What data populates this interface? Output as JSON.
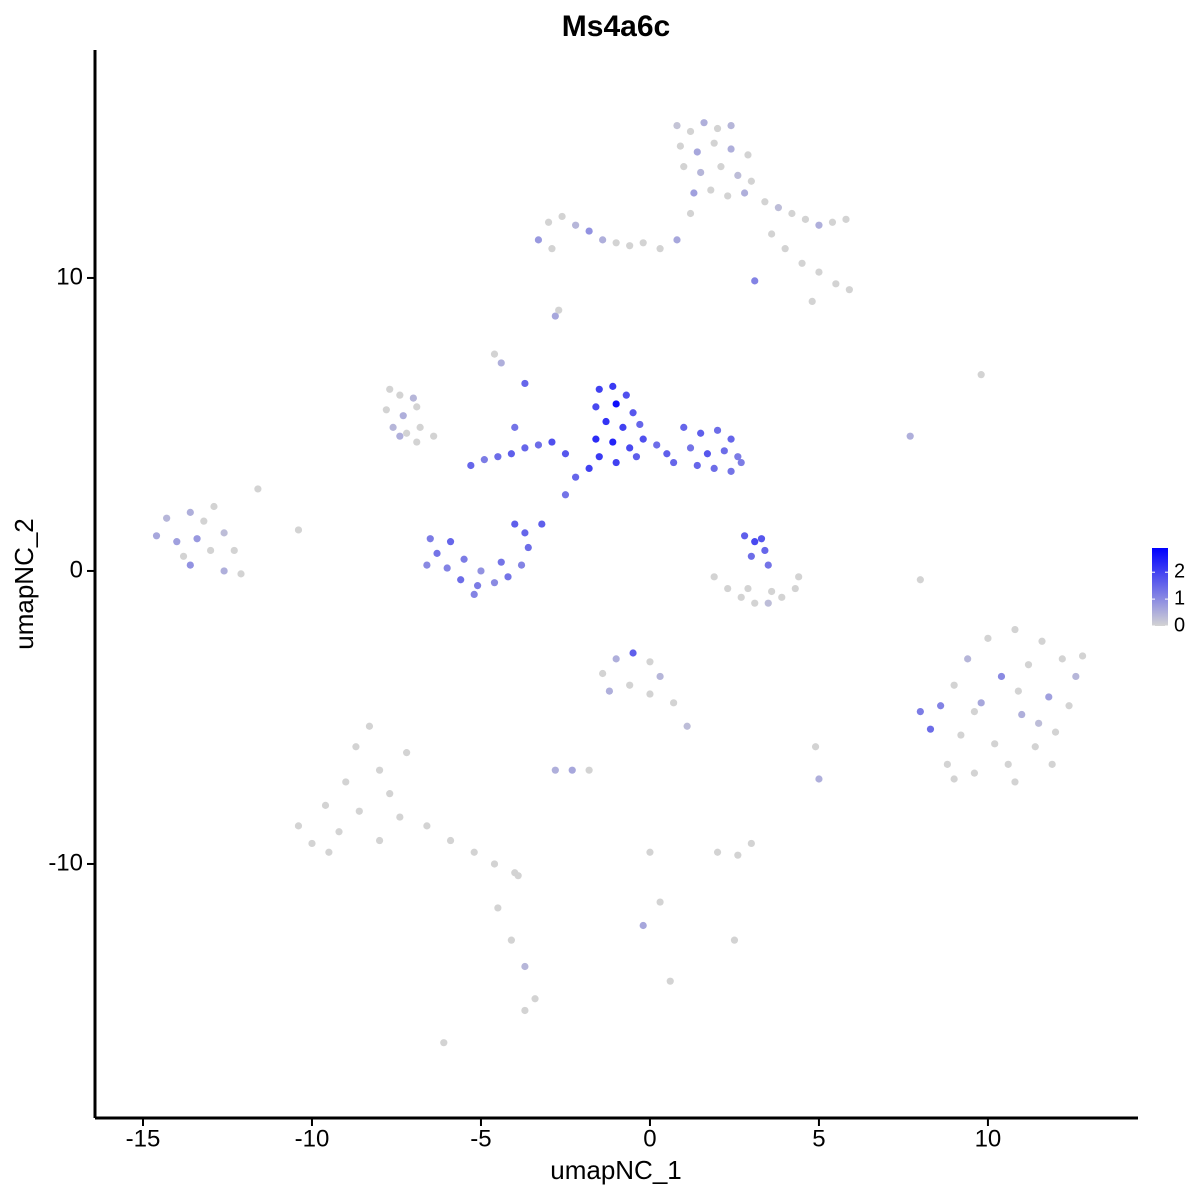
{
  "chart_data": {
    "type": "scatter",
    "title": "Ms4a6c",
    "xlabel": "umapNC_1",
    "ylabel": "umapNC_2",
    "xlim": [
      -16.42,
      14.44
    ],
    "ylim": [
      -18.67,
      17.78
    ],
    "xticks": [
      -15,
      -10,
      -5,
      0,
      5,
      10
    ],
    "yticks": [
      -10,
      0,
      10
    ],
    "colorlim": [
      0,
      2.9
    ],
    "colorticks": [
      0,
      1,
      2
    ],
    "colors": [
      "#d3d3d3",
      "#0000ff"
    ],
    "x": [
      0.8,
      1.2,
      1.6,
      2.0,
      2.4,
      0.9,
      1.4,
      1.9,
      2.4,
      2.9,
      1.0,
      1.5,
      2.1,
      2.6,
      3.0,
      1.3,
      1.8,
      2.3,
      2.8,
      1.2,
      3.4,
      3.8,
      4.2,
      4.6,
      5.0,
      5.4,
      5.8,
      3.6,
      4.0,
      4.5,
      5.0,
      5.5,
      5.9,
      4.8,
      3.1,
      -3.3,
      -3.0,
      -2.6,
      -2.2,
      -1.8,
      -1.4,
      -1.0,
      -0.6,
      -0.2,
      0.3,
      0.8,
      -2.9,
      -2.8,
      -2.7,
      -4.6,
      -4.4,
      -7.7,
      -7.4,
      -7.0,
      -7.8,
      -7.3,
      -6.9,
      -7.6,
      -7.2,
      -6.8,
      -6.4,
      -6.9,
      -7.4,
      -14.6,
      -14.3,
      -14.0,
      -13.6,
      -13.2,
      -12.9,
      -13.8,
      -13.4,
      -13.0,
      -12.6,
      -12.3,
      -13.6,
      -12.6,
      -12.1,
      -11.6,
      -1.5,
      -1.1,
      -0.7,
      -1.6,
      -1.0,
      -0.5,
      -1.3,
      -0.8,
      -0.3,
      -1.6,
      -1.1,
      -0.6,
      -1.5,
      -1.0,
      -0.4,
      -0.2,
      0.2,
      0.5,
      0.7,
      -1.8,
      1.0,
      1.5,
      2.0,
      2.4,
      1.2,
      1.7,
      2.2,
      2.6,
      1.4,
      1.9,
      2.4,
      2.7,
      -5.3,
      -4.9,
      -4.5,
      -4.1,
      -3.7,
      -3.3,
      -2.9,
      -2.5,
      -2.2,
      -2.5,
      -3.7,
      -4.0,
      -6.5,
      -6.3,
      -6.0,
      -5.6,
      -5.1,
      -4.6,
      -4.2,
      -3.8,
      -3.6,
      -3.7,
      -5.9,
      -5.5,
      -5.0,
      -4.4,
      -6.6,
      -5.2,
      -4.0,
      -3.2,
      2.8,
      3.1,
      3.4,
      3.0,
      3.5,
      3.3,
      1.9,
      2.3,
      2.7,
      3.1,
      3.5,
      3.9,
      4.3,
      2.9,
      3.6,
      4.4,
      -1.4,
      -1.0,
      -0.5,
      0.0,
      0.3,
      -1.2,
      -0.6,
      0.0,
      0.7,
      1.1,
      8.0,
      8.3,
      8.6,
      8.8,
      9.0,
      9.2,
      9.4,
      9.6,
      9.8,
      10.0,
      10.2,
      10.4,
      10.6,
      10.8,
      11.0,
      11.2,
      11.4,
      11.6,
      11.8,
      12.0,
      12.2,
      12.4,
      12.6,
      12.8,
      9.0,
      10.8,
      11.9,
      9.6,
      10.9,
      11.5,
      -10.4,
      -10.0,
      -9.6,
      -9.2,
      -9.0,
      -8.7,
      -8.3,
      -8.0,
      -7.7,
      -7.4,
      -8.6,
      -9.5,
      -8.0,
      -7.2,
      -6.6,
      -5.9,
      -5.2,
      -4.6,
      -4.0,
      -3.9,
      -4.5,
      -4.1,
      -3.7,
      -3.4,
      -3.7,
      -6.1,
      -2.8,
      -2.3,
      -1.8,
      0.3,
      0.0,
      -0.2,
      0.6,
      2.0,
      2.6,
      3.0,
      2.5,
      5.0,
      8.0,
      9.8,
      7.7,
      4.9,
      -10.4
    ],
    "y": [
      15.2,
      15.0,
      15.3,
      15.1,
      15.2,
      14.5,
      14.3,
      14.6,
      14.4,
      14.2,
      13.8,
      13.6,
      13.8,
      13.5,
      13.3,
      12.9,
      13.0,
      12.8,
      12.9,
      12.2,
      12.6,
      12.4,
      12.2,
      12.0,
      11.8,
      11.9,
      12.0,
      11.5,
      11.0,
      10.5,
      10.2,
      9.8,
      9.6,
      9.2,
      9.9,
      11.3,
      11.9,
      12.1,
      11.8,
      11.6,
      11.3,
      11.2,
      11.1,
      11.2,
      11.0,
      11.3,
      11.0,
      8.7,
      8.9,
      7.4,
      7.1,
      6.2,
      6.0,
      5.9,
      5.5,
      5.3,
      5.6,
      4.9,
      4.7,
      4.9,
      4.6,
      4.4,
      4.6,
      1.2,
      1.8,
      1.0,
      2.0,
      1.7,
      2.2,
      0.5,
      1.1,
      0.7,
      1.3,
      0.7,
      0.2,
      0.0,
      -0.1,
      2.8,
      6.2,
      6.3,
      6.0,
      5.6,
      5.7,
      5.4,
      5.1,
      4.9,
      5.0,
      4.5,
      4.4,
      4.2,
      3.9,
      3.7,
      3.9,
      4.5,
      4.3,
      4.0,
      3.7,
      3.5,
      4.9,
      4.7,
      4.8,
      4.5,
      4.2,
      4.0,
      4.1,
      3.9,
      3.6,
      3.5,
      3.4,
      3.7,
      3.6,
      3.8,
      3.9,
      4.0,
      4.2,
      4.3,
      4.4,
      4.0,
      3.2,
      2.6,
      6.4,
      4.9,
      1.1,
      0.6,
      0.1,
      -0.3,
      -0.5,
      -0.4,
      -0.2,
      0.2,
      0.8,
      1.3,
      1.0,
      0.4,
      0.0,
      0.3,
      0.2,
      -0.8,
      1.6,
      1.6,
      1.2,
      1.0,
      0.7,
      0.5,
      0.2,
      1.1,
      -0.2,
      -0.6,
      -0.9,
      -1.1,
      -1.1,
      -0.9,
      -0.6,
      -0.6,
      -0.7,
      -0.2,
      -3.5,
      -3.0,
      -2.8,
      -3.1,
      -3.6,
      -4.1,
      -3.9,
      -4.2,
      -4.5,
      -5.3,
      -4.8,
      -5.4,
      -4.6,
      -6.6,
      -3.9,
      -5.6,
      -3.0,
      -6.9,
      -4.5,
      -2.3,
      -5.9,
      -3.6,
      -6.6,
      -2.0,
      -4.9,
      -3.2,
      -6.0,
      -2.4,
      -4.3,
      -5.5,
      -3.0,
      -4.6,
      -3.6,
      -2.9,
      -7.1,
      -7.2,
      -6.6,
      -4.8,
      -4.1,
      -5.2,
      -8.7,
      -9.3,
      -8.0,
      -8.9,
      -7.2,
      -6.0,
      -5.3,
      -6.8,
      -7.6,
      -8.4,
      -8.2,
      -9.6,
      -9.2,
      -6.2,
      -8.7,
      -9.2,
      -9.6,
      -10.0,
      -10.3,
      -10.4,
      -11.5,
      -12.6,
      -13.5,
      -14.6,
      -15.0,
      -16.1,
      -6.8,
      -6.8,
      -6.8,
      -11.3,
      -9.6,
      -12.1,
      -14.0,
      -9.6,
      -9.7,
      -9.3,
      -12.6,
      -7.1,
      -0.3,
      6.7,
      4.6,
      -6.0,
      1.4
    ],
    "values": [
      0.2,
      0,
      0.5,
      0,
      0.4,
      0,
      0.6,
      0,
      0.5,
      0,
      0,
      0.4,
      0,
      0.3,
      0,
      0.7,
      0,
      0,
      0.5,
      0,
      0,
      0.3,
      0,
      0,
      0.5,
      0,
      0,
      0,
      0,
      0,
      0,
      0,
      0,
      0,
      1.1,
      0.8,
      0,
      0,
      0.4,
      0.9,
      0.5,
      0,
      0,
      0,
      0,
      0.6,
      0,
      0.6,
      0,
      0,
      0.5,
      0,
      0,
      0.4,
      0,
      0.5,
      0,
      0.4,
      0,
      0,
      0,
      0,
      0.5,
      0.6,
      0.4,
      0.7,
      0.5,
      0,
      0,
      0,
      0.8,
      0,
      0.3,
      0,
      0.9,
      0.5,
      0,
      0,
      2.0,
      2.1,
      1.8,
      1.9,
      2.7,
      1.7,
      2.2,
      2.0,
      1.5,
      2.3,
      2.4,
      1.9,
      2.1,
      2.0,
      1.6,
      1.8,
      1.4,
      1.6,
      1.5,
      2.0,
      1.5,
      1.6,
      1.4,
      1.5,
      1.3,
      1.7,
      1.4,
      1.2,
      1.5,
      1.4,
      1.3,
      1.2,
      1.5,
      1.2,
      1.4,
      1.6,
      1.5,
      1.4,
      1.8,
      1.7,
      1.5,
      1.3,
      1.5,
      1.3,
      1.2,
      1.3,
      1.1,
      1.4,
      1.2,
      1.0,
      1.3,
      1.1,
      1.4,
      1.5,
      1.5,
      1.2,
      0.9,
      1.3,
      1.0,
      1.1,
      1.6,
      1.6,
      1.6,
      1.9,
      1.5,
      1.4,
      1.3,
      1.7,
      0,
      0,
      0,
      0,
      0.3,
      0,
      0,
      0,
      0,
      0,
      0,
      0.5,
      1.6,
      0,
      0.4,
      0.5,
      0,
      0,
      0,
      0.3,
      1.2,
      1.4,
      1.1,
      0,
      0,
      0,
      0.4,
      0,
      0.6,
      0,
      0,
      1.0,
      0,
      0,
      0.5,
      0,
      0,
      0,
      0.7,
      0,
      0,
      0,
      0.4,
      0,
      0,
      0,
      0,
      0,
      0,
      0.3,
      0,
      0,
      0,
      0,
      0,
      0,
      0,
      0,
      0,
      0,
      0,
      0,
      0,
      0,
      0,
      0,
      0,
      0,
      0,
      0,
      0,
      0,
      0.4,
      0,
      0,
      0,
      0.5,
      0.6,
      0,
      0,
      0,
      0.6,
      0,
      0,
      0,
      0,
      0,
      0.5,
      0,
      0,
      0.5,
      0,
      0
    ]
  }
}
